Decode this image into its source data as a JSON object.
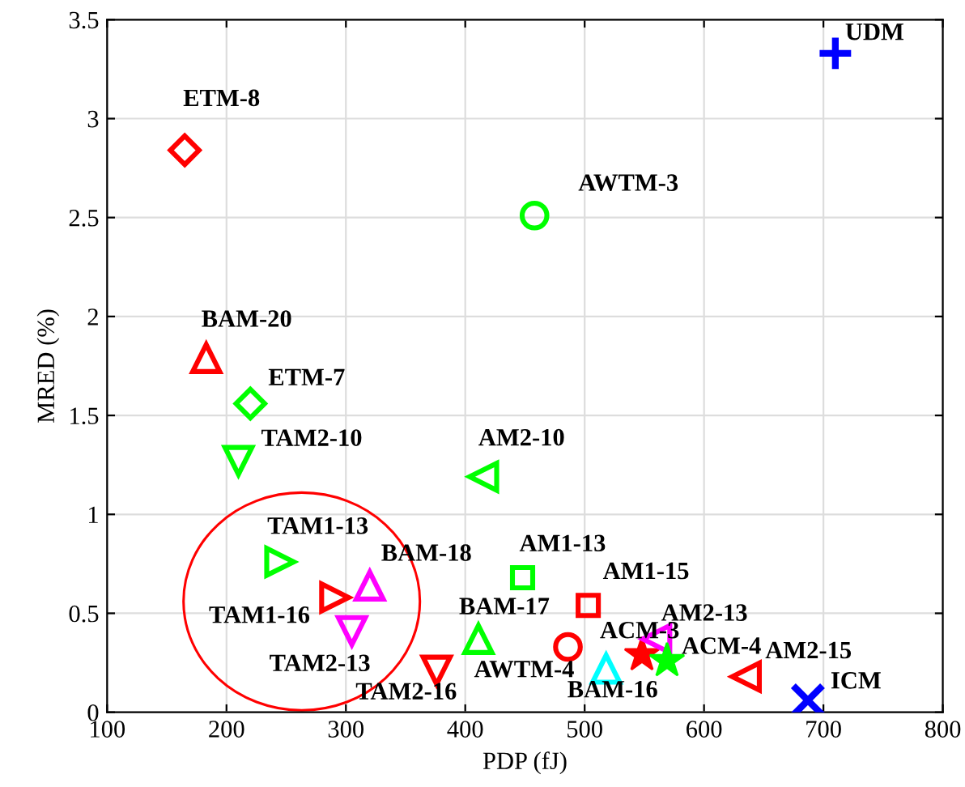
{
  "chart_data": {
    "type": "scatter",
    "xlabel": "PDP (fJ)",
    "ylabel": "MRED (%)",
    "xlim": [
      100,
      800
    ],
    "xticks": [
      100,
      200,
      300,
      400,
      500,
      600,
      700,
      800
    ],
    "ylim": [
      0,
      3.5
    ],
    "yticks": [
      0,
      0.5,
      1,
      1.5,
      2,
      2.5,
      3,
      3.5
    ],
    "grid": true,
    "legend": false,
    "series": [
      {
        "name": "ETM-8",
        "color": "#ff0000",
        "marker": "diamond",
        "x": [
          165
        ],
        "values": [
          2.84
        ]
      },
      {
        "name": "UDM",
        "color": "#0000ff",
        "marker": "plus",
        "x": [
          710
        ],
        "values": [
          3.33
        ]
      },
      {
        "name": "AWTM-3",
        "color": "#00ff00",
        "marker": "circle",
        "x": [
          458
        ],
        "values": [
          2.51
        ]
      },
      {
        "name": "BAM-20",
        "color": "#ff0000",
        "marker": "triangle",
        "x": [
          183
        ],
        "values": [
          1.79
        ]
      },
      {
        "name": "ETM-7",
        "color": "#00ff00",
        "marker": "diamond",
        "x": [
          220
        ],
        "values": [
          1.56
        ]
      },
      {
        "name": "TAM2-10",
        "color": "#00ff00",
        "marker": "triangle-down",
        "x": [
          210
        ],
        "values": [
          1.27
        ]
      },
      {
        "name": "AM2-10",
        "color": "#00ff00",
        "marker": "triangle-left",
        "x": [
          415
        ],
        "values": [
          1.19
        ]
      },
      {
        "name": "TAM1-13",
        "color": "#00ff00",
        "marker": "triangle-right",
        "x": [
          245
        ],
        "values": [
          0.76
        ]
      },
      {
        "name": "TAM1-16",
        "color": "#ff0000",
        "marker": "triangle-right",
        "x": [
          291
        ],
        "values": [
          0.58
        ]
      },
      {
        "name": "BAM-18",
        "color": "#ff00ff",
        "marker": "triangle",
        "x": [
          320
        ],
        "values": [
          0.64
        ]
      },
      {
        "name": "TAM2-13",
        "color": "#ff00ff",
        "marker": "triangle-down",
        "x": [
          305
        ],
        "values": [
          0.41
        ]
      },
      {
        "name": "TAM2-16",
        "color": "#ff0000",
        "marker": "triangle-down",
        "x": [
          376
        ],
        "values": [
          0.21
        ]
      },
      {
        "name": "BAM-17",
        "color": "#00ff00",
        "marker": "triangle",
        "x": [
          411
        ],
        "values": [
          0.37
        ]
      },
      {
        "name": "AWTM-4",
        "color": "#ff0000",
        "marker": "circle",
        "x": [
          486
        ],
        "values": [
          0.33
        ]
      },
      {
        "name": "AM1-13",
        "color": "#00ff00",
        "marker": "square",
        "x": [
          448
        ],
        "values": [
          0.68
        ]
      },
      {
        "name": "AM1-15",
        "color": "#ff0000",
        "marker": "square",
        "x": [
          503
        ],
        "values": [
          0.54
        ]
      },
      {
        "name": "ACM-3",
        "color": "#ff0000",
        "marker": "star",
        "x": [
          548
        ],
        "values": [
          0.29
        ]
      },
      {
        "name": "AM2-13",
        "color": "#ff00ff",
        "marker": "triangle-left",
        "x": [
          560
        ],
        "values": [
          0.37
        ]
      },
      {
        "name": "ACM-4",
        "color": "#00ff00",
        "marker": "star",
        "x": [
          569
        ],
        "values": [
          0.26
        ]
      },
      {
        "name": "BAM-16",
        "color": "#00ffff",
        "marker": "triangle",
        "x": [
          518
        ],
        "values": [
          0.22
        ]
      },
      {
        "name": "AM2-15",
        "color": "#ff0000",
        "marker": "triangle-left",
        "x": [
          635
        ],
        "values": [
          0.18
        ]
      },
      {
        "name": "ICM",
        "color": "#0000ff",
        "marker": "cross",
        "x": [
          687
        ],
        "values": [
          0.06
        ]
      }
    ]
  }
}
